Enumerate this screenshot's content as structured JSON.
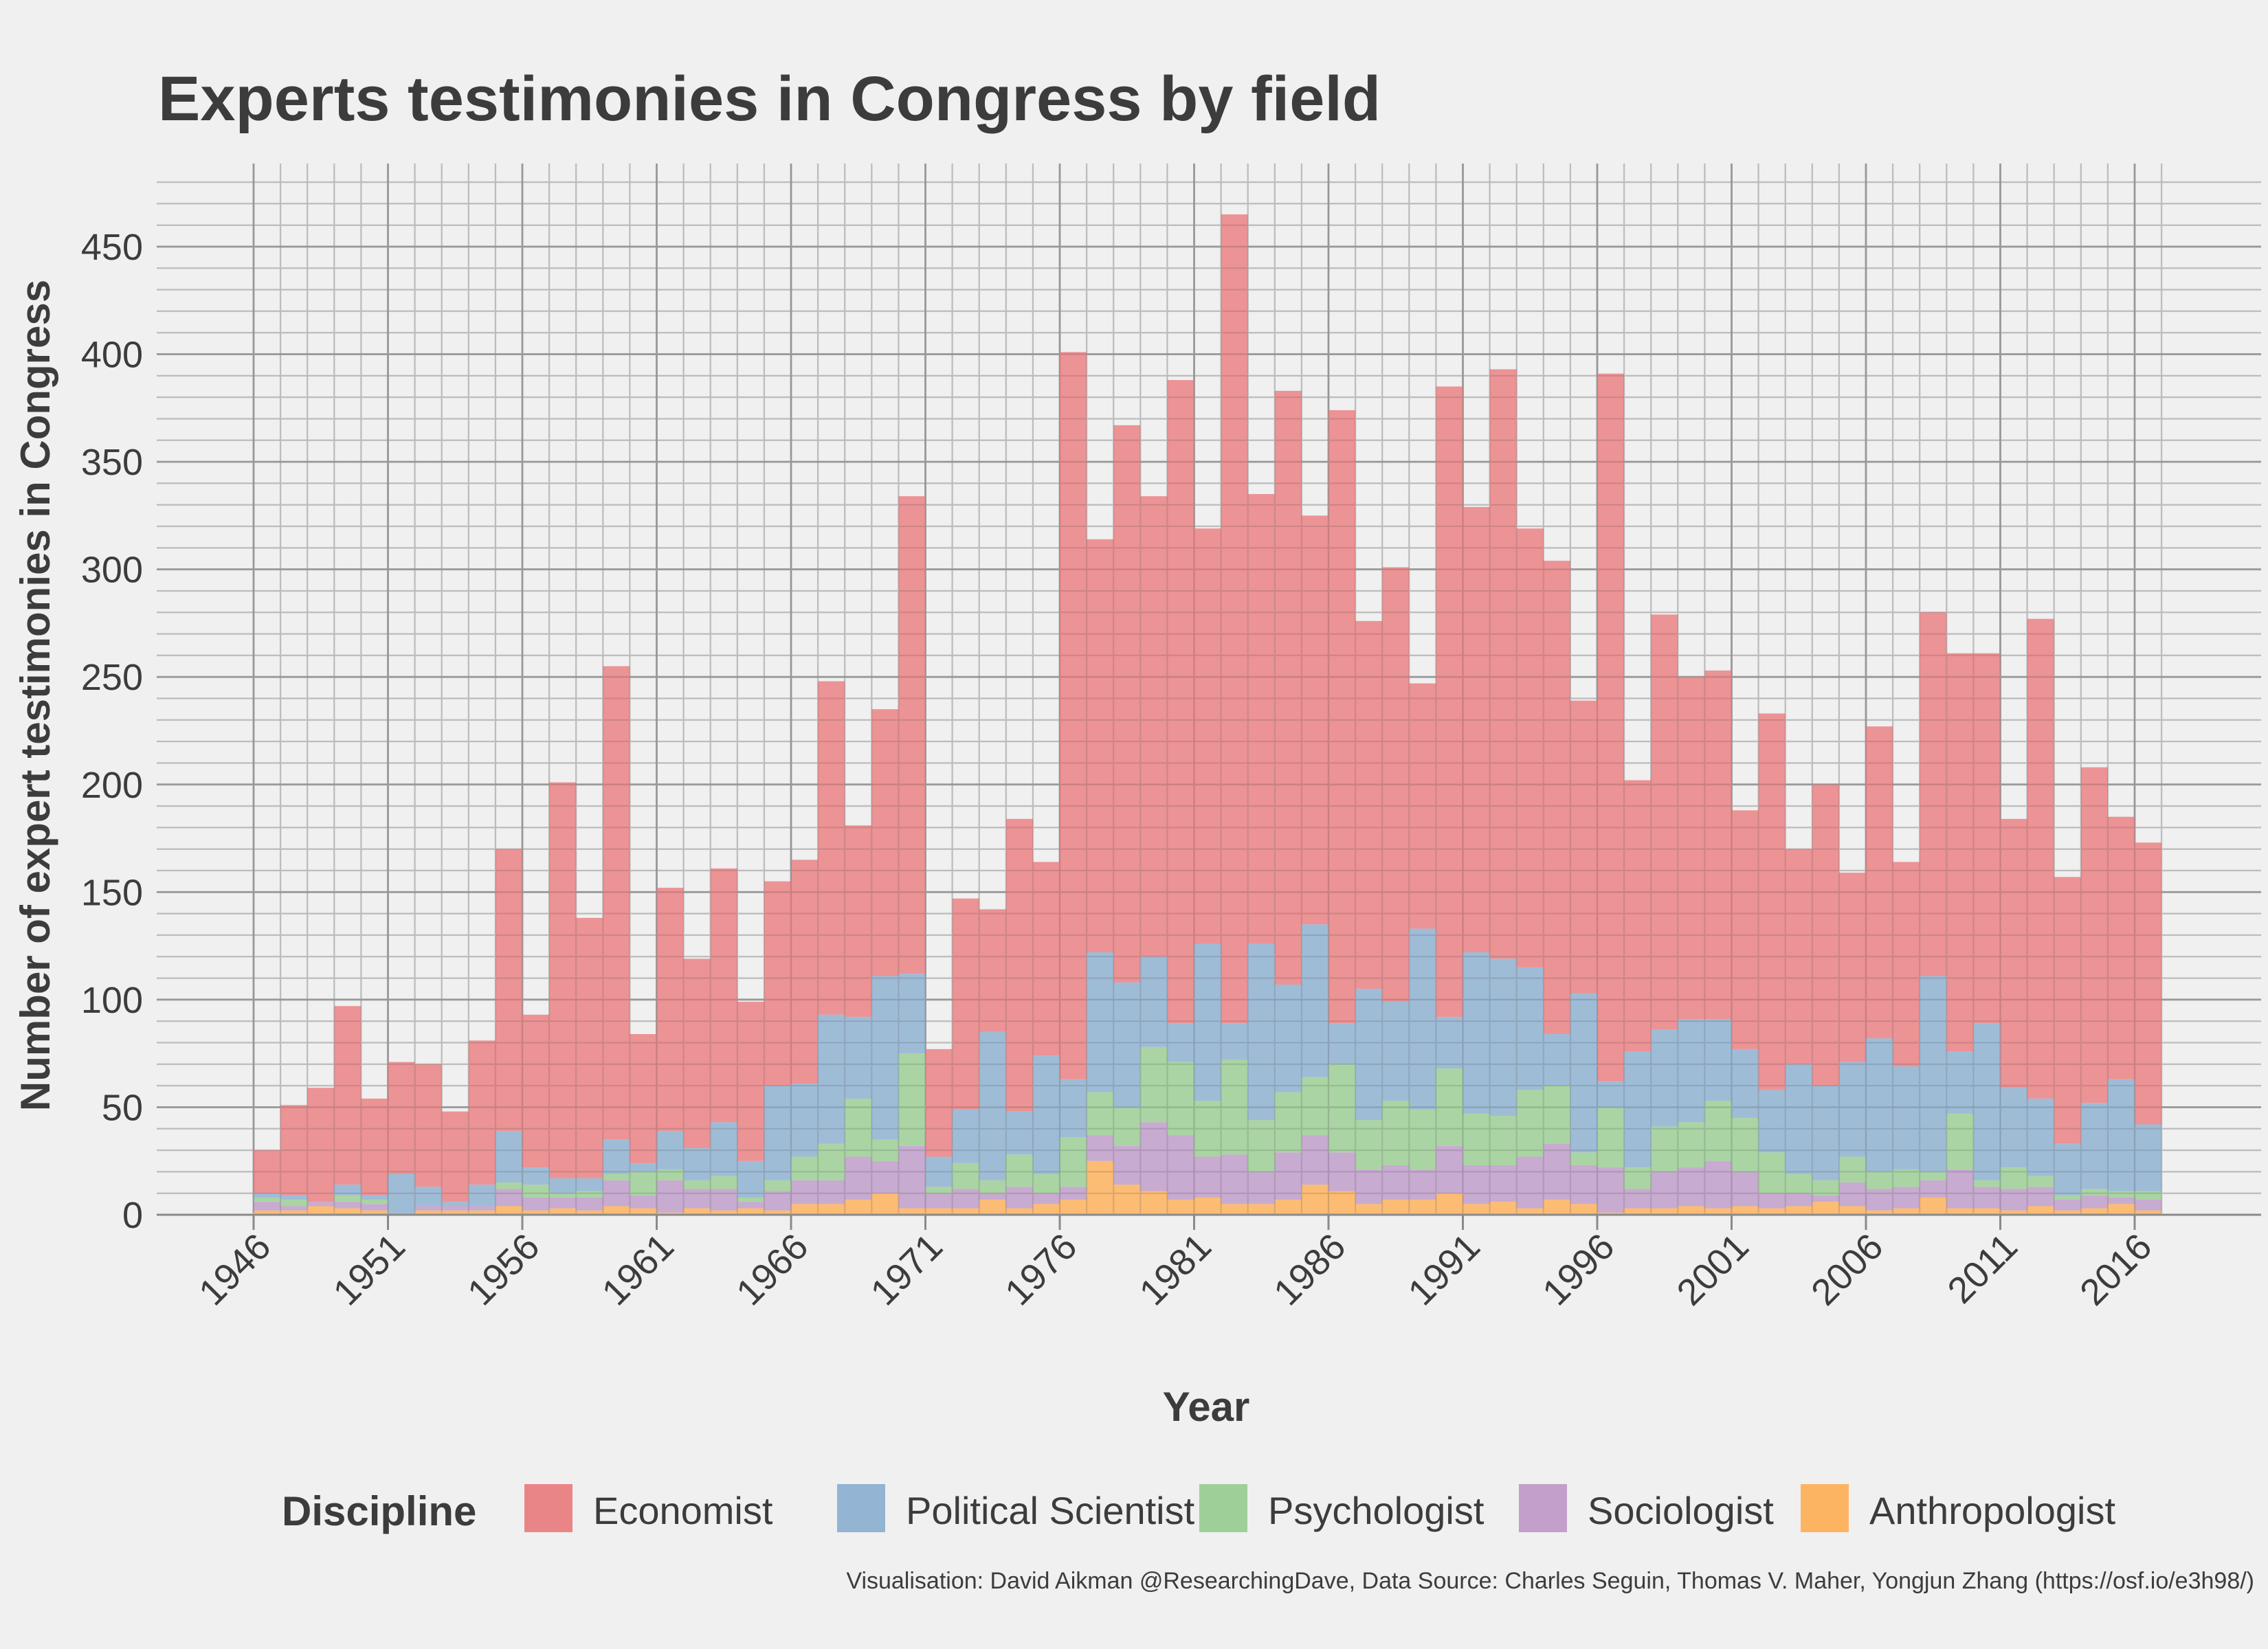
{
  "chart_data": {
    "type": "bar",
    "stacked": true,
    "title": "Experts testimonies in Congress by field",
    "xlabel": "Year",
    "ylabel": "Number of expert testimonies in Congress",
    "caption": "Visualisation: David Aikman @ResearchingDave, Data Source: Charles Seguin, Thomas V. Maher, Yongjun Zhang (https://osf.io/e3h98/)",
    "legend_title": "Discipline",
    "legend_position": "bottom",
    "grid": true,
    "xlim": [
      1946,
      2016
    ],
    "ylim": [
      0,
      480
    ],
    "x_ticks": [
      "1946",
      "1951",
      "1956",
      "1961",
      "1966",
      "1971",
      "1976",
      "1981",
      "1986",
      "1991",
      "1996",
      "2001",
      "2006",
      "2011",
      "2016"
    ],
    "y_ticks": [
      "0",
      "50",
      "100",
      "150",
      "200",
      "250",
      "300",
      "350",
      "400",
      "450"
    ],
    "x": [
      1946,
      1947,
      1948,
      1949,
      1950,
      1951,
      1952,
      1953,
      1954,
      1955,
      1956,
      1957,
      1958,
      1959,
      1960,
      1961,
      1962,
      1963,
      1964,
      1965,
      1966,
      1967,
      1968,
      1969,
      1970,
      1971,
      1972,
      1973,
      1974,
      1975,
      1976,
      1977,
      1978,
      1979,
      1980,
      1981,
      1982,
      1983,
      1984,
      1985,
      1986,
      1987,
      1988,
      1989,
      1990,
      1991,
      1992,
      1993,
      1994,
      1995,
      1996,
      1997,
      1998,
      1999,
      2000,
      2001,
      2002,
      2003,
      2004,
      2005,
      2006,
      2007,
      2008,
      2009,
      2010,
      2011,
      2012,
      2013,
      2014,
      2015,
      2016
    ],
    "series": [
      {
        "name": "Anthropologist",
        "color": "#fdb462",
        "values": [
          2,
          2,
          4,
          3,
          2,
          0,
          2,
          2,
          2,
          4,
          2,
          3,
          2,
          4,
          3,
          1,
          3,
          2,
          3,
          2,
          5,
          5,
          7,
          10,
          3,
          3,
          3,
          7,
          3,
          5,
          7,
          25,
          14,
          11,
          7,
          8,
          5,
          5,
          7,
          14,
          11,
          5,
          7,
          7,
          10,
          5,
          6,
          3,
          7,
          5,
          1,
          3,
          3,
          4,
          3,
          4,
          3,
          4,
          6,
          4,
          2,
          3,
          8,
          3,
          3,
          2,
          4,
          2,
          3,
          5,
          2
        ]
      },
      {
        "name": "Sociologist",
        "color": "#c2a0cb",
        "values": [
          4,
          2,
          2,
          3,
          3,
          0,
          2,
          2,
          2,
          8,
          6,
          5,
          6,
          12,
          6,
          15,
          9,
          10,
          3,
          9,
          11,
          11,
          20,
          15,
          29,
          7,
          9,
          3,
          10,
          5,
          6,
          12,
          18,
          32,
          30,
          19,
          23,
          15,
          22,
          23,
          18,
          16,
          16,
          14,
          22,
          18,
          17,
          24,
          26,
          18,
          21,
          9,
          17,
          18,
          22,
          16,
          7,
          6,
          3,
          11,
          10,
          10,
          8,
          18,
          10,
          10,
          9,
          5,
          6,
          3,
          5
        ]
      },
      {
        "name": "Psychologist",
        "color": "#9fcf98",
        "values": [
          2,
          3,
          0,
          3,
          2,
          0,
          0,
          0,
          0,
          3,
          6,
          2,
          3,
          3,
          11,
          5,
          4,
          6,
          2,
          5,
          11,
          17,
          27,
          10,
          43,
          3,
          12,
          6,
          15,
          9,
          23,
          20,
          18,
          35,
          34,
          26,
          44,
          24,
          28,
          27,
          41,
          23,
          30,
          28,
          36,
          24,
          23,
          31,
          27,
          6,
          28,
          10,
          21,
          21,
          28,
          25,
          19,
          9,
          7,
          12,
          8,
          8,
          4,
          26,
          3,
          10,
          5,
          2,
          3,
          3,
          4
        ]
      },
      {
        "name": "Political Scientist",
        "color": "#93b4d3",
        "values": [
          2,
          2,
          0,
          5,
          2,
          19,
          9,
          2,
          10,
          24,
          8,
          7,
          6,
          16,
          4,
          18,
          15,
          25,
          17,
          44,
          34,
          60,
          38,
          76,
          37,
          14,
          25,
          69,
          20,
          55,
          27,
          65,
          58,
          42,
          18,
          73,
          17,
          82,
          50,
          71,
          19,
          61,
          46,
          84,
          24,
          75,
          73,
          57,
          24,
          74,
          12,
          54,
          45,
          48,
          38,
          32,
          29,
          51,
          44,
          44,
          62,
          48,
          91,
          29,
          73,
          37,
          36,
          24,
          40,
          52,
          31
        ]
      },
      {
        "name": "Economist",
        "color": "#ea8587",
        "values": [
          20,
          42,
          53,
          83,
          45,
          52,
          57,
          42,
          67,
          131,
          71,
          184,
          121,
          220,
          60,
          113,
          88,
          118,
          74,
          95,
          104,
          155,
          89,
          124,
          222,
          50,
          98,
          57,
          136,
          90,
          338,
          192,
          259,
          214,
          299,
          193,
          376,
          209,
          276,
          190,
          285,
          171,
          202,
          114,
          293,
          207,
          274,
          204,
          220,
          136,
          329,
          126,
          193,
          159,
          162,
          111,
          175,
          100,
          140,
          88,
          145,
          95,
          169,
          185,
          172,
          125,
          223,
          124,
          156,
          122,
          131
        ]
      }
    ]
  }
}
